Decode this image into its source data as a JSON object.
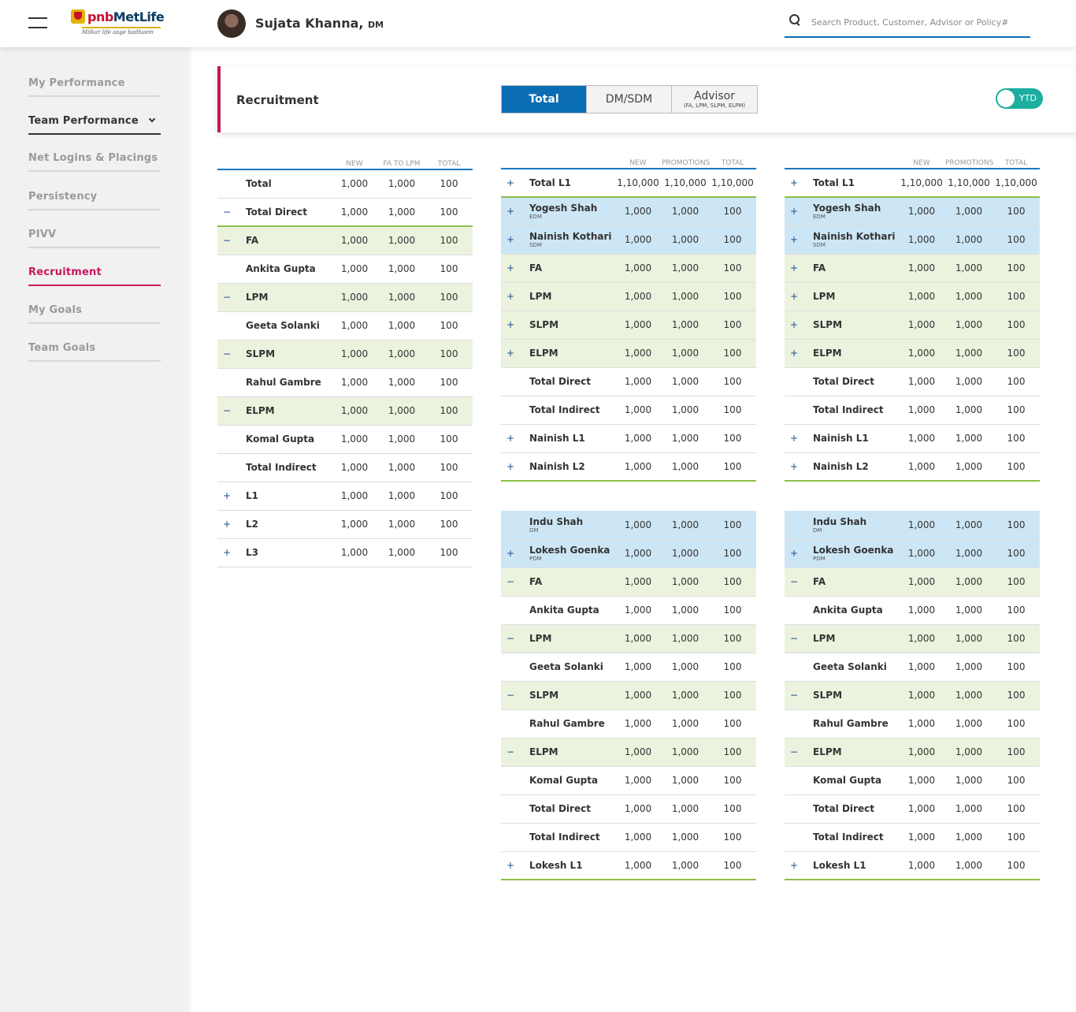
{
  "header": {
    "brand_pnb": "pnb",
    "brand_met": "MetLife",
    "tagline": "Milkar life aage badhaein",
    "user_name": "Sujata Khanna,",
    "user_role": "DM",
    "search_placeholder": "Search Product, Customer, Advisor or Policy#"
  },
  "sidebar": {
    "items": [
      {
        "label": "My Performance"
      },
      {
        "label": "Team Performance"
      },
      {
        "label": "Net Logins & Placings"
      },
      {
        "label": "Persistency"
      },
      {
        "label": "PIVV"
      },
      {
        "label": "Recruitment"
      },
      {
        "label": "My Goals"
      },
      {
        "label": "Team Goals"
      }
    ]
  },
  "section": {
    "title": "Recruitment",
    "tabs": [
      {
        "label": "Total",
        "sub": ""
      },
      {
        "label": "DM/SDM",
        "sub": ""
      },
      {
        "label": "Advisor",
        "sub": "(FA, LPM, SLPM, ELPM)"
      }
    ],
    "toggle_label": "YTD"
  },
  "table1": {
    "headers": [
      "NEW",
      "FA TO LPM",
      "TOTAL"
    ],
    "rows": [
      {
        "icon": "",
        "name": "Total",
        "sub": "",
        "v": [
          "1,000",
          "1,000",
          "100"
        ],
        "style": ""
      },
      {
        "icon": "−",
        "name": "Total Direct",
        "sub": "",
        "v": [
          "1,000",
          "1,000",
          "100"
        ],
        "style": "tot"
      },
      {
        "icon": "−",
        "name": "FA",
        "sub": "",
        "v": [
          "1,000",
          "1,000",
          "100"
        ],
        "style": "g"
      },
      {
        "icon": "",
        "name": "Ankita Gupta",
        "sub": "",
        "v": [
          "1,000",
          "1,000",
          "100"
        ],
        "style": ""
      },
      {
        "icon": "−",
        "name": "LPM",
        "sub": "",
        "v": [
          "1,000",
          "1,000",
          "100"
        ],
        "style": "g"
      },
      {
        "icon": "",
        "name": "Geeta Solanki",
        "sub": "",
        "v": [
          "1,000",
          "1,000",
          "100"
        ],
        "style": ""
      },
      {
        "icon": "−",
        "name": "SLPM",
        "sub": "",
        "v": [
          "1,000",
          "1,000",
          "100"
        ],
        "style": "g"
      },
      {
        "icon": "",
        "name": "Rahul Gambre",
        "sub": "",
        "v": [
          "1,000",
          "1,000",
          "100"
        ],
        "style": ""
      },
      {
        "icon": "−",
        "name": "ELPM",
        "sub": "",
        "v": [
          "1,000",
          "1,000",
          "100"
        ],
        "style": "g"
      },
      {
        "icon": "",
        "name": "Komal Gupta",
        "sub": "",
        "v": [
          "1,000",
          "1,000",
          "100"
        ],
        "style": ""
      },
      {
        "icon": "",
        "name": "Total Indirect",
        "sub": "",
        "v": [
          "1,000",
          "1,000",
          "100"
        ],
        "style": ""
      },
      {
        "icon": "+",
        "name": "L1",
        "sub": "",
        "v": [
          "1,000",
          "1,000",
          "100"
        ],
        "style": ""
      },
      {
        "icon": "+",
        "name": "L2",
        "sub": "",
        "v": [
          "1,000",
          "1,000",
          "100"
        ],
        "style": ""
      },
      {
        "icon": "+",
        "name": "L3",
        "sub": "",
        "v": [
          "1,000",
          "1,000",
          "100"
        ],
        "style": ""
      }
    ]
  },
  "table2": {
    "headers": [
      "NEW",
      "PROMOTIONS",
      "TOTAL"
    ],
    "rows": [
      {
        "icon": "+",
        "name": "Total L1",
        "sub": "",
        "v": [
          "1,10,000",
          "1,10,000",
          "1,10,000"
        ],
        "style": "tot"
      },
      {
        "icon": "+",
        "name": "Yogesh Shah",
        "sub": "EDM",
        "v": [
          "1,000",
          "1,000",
          "100"
        ],
        "style": "b"
      },
      {
        "icon": "+",
        "name": "Nainish Kothari",
        "sub": "SDM",
        "v": [
          "1,000",
          "1,000",
          "100"
        ],
        "style": "b"
      },
      {
        "icon": "+",
        "name": "FA",
        "sub": "",
        "v": [
          "1,000",
          "1,000",
          "100"
        ],
        "style": "g"
      },
      {
        "icon": "+",
        "name": "LPM",
        "sub": "",
        "v": [
          "1,000",
          "1,000",
          "100"
        ],
        "style": "g"
      },
      {
        "icon": "+",
        "name": "SLPM",
        "sub": "",
        "v": [
          "1,000",
          "1,000",
          "100"
        ],
        "style": "g"
      },
      {
        "icon": "+",
        "name": "ELPM",
        "sub": "",
        "v": [
          "1,000",
          "1,000",
          "100"
        ],
        "style": "g"
      },
      {
        "icon": "",
        "name": "Total Direct",
        "sub": "",
        "v": [
          "1,000",
          "1,000",
          "100"
        ],
        "style": ""
      },
      {
        "icon": "",
        "name": "Total Indirect",
        "sub": "",
        "v": [
          "1,000",
          "1,000",
          "100"
        ],
        "style": ""
      },
      {
        "icon": "+",
        "name": "Nainish L1",
        "sub": "",
        "v": [
          "1,000",
          "1,000",
          "100"
        ],
        "style": ""
      },
      {
        "icon": "+",
        "name": "Nainish L2",
        "sub": "",
        "v": [
          "1,000",
          "1,000",
          "100"
        ],
        "style": "end"
      }
    ]
  },
  "table3": {
    "rows": [
      {
        "icon": "",
        "name": "Indu Shah",
        "sub": "DM",
        "v": [
          "1,000",
          "1,000",
          "100"
        ],
        "style": "b"
      },
      {
        "icon": "+",
        "name": "Lokesh Goenka",
        "sub": "PDM",
        "v": [
          "1,000",
          "1,000",
          "100"
        ],
        "style": "b"
      },
      {
        "icon": "−",
        "name": "FA",
        "sub": "",
        "v": [
          "1,000",
          "1,000",
          "100"
        ],
        "style": "g"
      },
      {
        "icon": "",
        "name": "Ankita Gupta",
        "sub": "",
        "v": [
          "1,000",
          "1,000",
          "100"
        ],
        "style": ""
      },
      {
        "icon": "−",
        "name": "LPM",
        "sub": "",
        "v": [
          "1,000",
          "1,000",
          "100"
        ],
        "style": "g"
      },
      {
        "icon": "",
        "name": "Geeta Solanki",
        "sub": "",
        "v": [
          "1,000",
          "1,000",
          "100"
        ],
        "style": ""
      },
      {
        "icon": "−",
        "name": "SLPM",
        "sub": "",
        "v": [
          "1,000",
          "1,000",
          "100"
        ],
        "style": "g"
      },
      {
        "icon": "",
        "name": "Rahul Gambre",
        "sub": "",
        "v": [
          "1,000",
          "1,000",
          "100"
        ],
        "style": ""
      },
      {
        "icon": "−",
        "name": "ELPM",
        "sub": "",
        "v": [
          "1,000",
          "1,000",
          "100"
        ],
        "style": "g"
      },
      {
        "icon": "",
        "name": "Komal Gupta",
        "sub": "",
        "v": [
          "1,000",
          "1,000",
          "100"
        ],
        "style": ""
      },
      {
        "icon": "",
        "name": "Total Direct",
        "sub": "",
        "v": [
          "1,000",
          "1,000",
          "100"
        ],
        "style": ""
      },
      {
        "icon": "",
        "name": "Total Indirect",
        "sub": "",
        "v": [
          "1,000",
          "1,000",
          "100"
        ],
        "style": ""
      },
      {
        "icon": "+",
        "name": "Lokesh L1",
        "sub": "",
        "v": [
          "1,000",
          "1,000",
          "100"
        ],
        "style": "end"
      }
    ]
  }
}
